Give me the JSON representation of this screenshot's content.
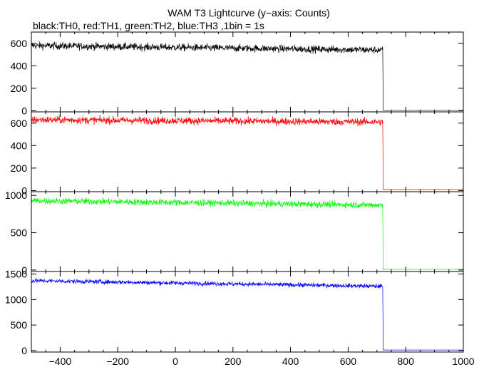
{
  "title": "WAM T3 Lightcurve (y−axis: Counts)",
  "subtitle": "black:TH0, red:TH1, green:TH2, blue:TH3 ,1bin = 1s",
  "chart_data": [
    {
      "type": "line",
      "series": [
        {
          "name": "TH0",
          "color": "#000000",
          "level": 580,
          "noise": 30,
          "drift": -40,
          "drop_x": 720,
          "after": 3
        }
      ],
      "xlim": [
        -500,
        1000
      ],
      "ylim": [
        -10,
        700
      ],
      "yticks": [
        0,
        200,
        400,
        600
      ],
      "grid": false
    },
    {
      "type": "line",
      "series": [
        {
          "name": "TH1",
          "color": "#ff0000",
          "level": 630,
          "noise": 30,
          "drift": -20,
          "drop_x": 720,
          "after": 10
        }
      ],
      "xlim": [
        -500,
        1000
      ],
      "ylim": [
        -10,
        700
      ],
      "yticks": [
        0,
        200,
        400,
        600
      ],
      "grid": false
    },
    {
      "type": "line",
      "series": [
        {
          "name": "TH2",
          "color": "#00ff00",
          "level": 930,
          "noise": 40,
          "drift": -60,
          "drop_x": 720,
          "after": 10
        }
      ],
      "xlim": [
        -500,
        1000
      ],
      "ylim": [
        -20,
        1050
      ],
      "yticks": [
        0,
        500,
        1000
      ],
      "grid": false
    },
    {
      "type": "line",
      "series": [
        {
          "name": "TH3",
          "color": "#0000ff",
          "level": 1370,
          "noise": 40,
          "drift": -110,
          "drop_x": 720,
          "after": 10
        }
      ],
      "xlim": [
        -500,
        1000
      ],
      "ylim": [
        -30,
        1550
      ],
      "yticks": [
        0,
        500,
        1000,
        1500
      ],
      "xticks": [
        -400,
        -200,
        0,
        200,
        400,
        600,
        800,
        1000
      ],
      "grid": false
    }
  ]
}
